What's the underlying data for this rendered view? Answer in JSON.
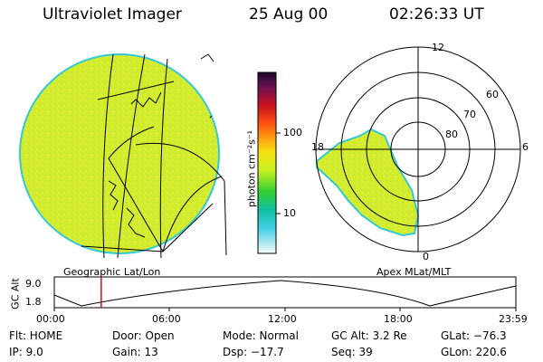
{
  "header": {
    "instrument": "Ultraviolet Imager",
    "date": "25 Aug 00",
    "time": "02:26:33 UT"
  },
  "geo_panel": {
    "label": "Geographic Lat/Lon"
  },
  "apex_panel": {
    "label": "Apex MLat/MLT",
    "mlt_labels": {
      "top": "12",
      "left": "18",
      "right": "6",
      "bottom": "0"
    },
    "lat_labels": [
      "60",
      "70",
      "80"
    ]
  },
  "colorbar": {
    "title": "photon cm⁻²s⁻¹",
    "tick_100": "100",
    "tick_10": "10"
  },
  "altitude_plot": {
    "ylabel": "GC Alt",
    "y_top": "9.0",
    "y_bottom": "1.8",
    "x_ticks": [
      "00:00",
      "06:00",
      "12:00",
      "18:00",
      "23:59"
    ],
    "current_time_hours": 2.44
  },
  "status": {
    "flt": "Flt: HOME",
    "ip": "IP:  9.0",
    "door": "Door: Open",
    "gain": "Gain: 13",
    "mode": "Mode: Normal",
    "dsp": "Dsp:  −17.7",
    "gc_alt": "GC Alt: 3.2 Re",
    "seq": "Seq: 39",
    "glat": "GLat: −76.3",
    "glon": "GLon: 220.6"
  },
  "colors": {
    "image_fill": "#d4ec2c",
    "image_edge": "#34c8d8",
    "timeline_marker": "#d01010"
  }
}
